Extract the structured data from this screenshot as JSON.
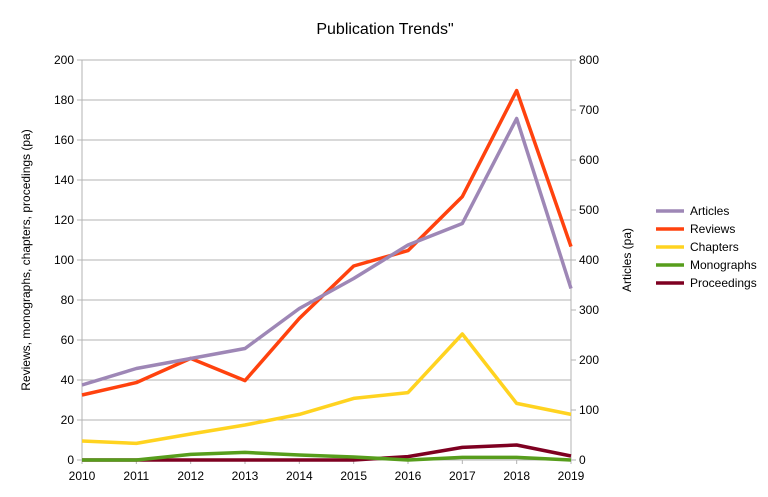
{
  "chart_data": {
    "type": "line",
    "title": "Publication Trends\"",
    "ylabel": "Reviews, monographs, chapters, procedings (pa)",
    "y2label": "Articles (pa)",
    "x": [
      "2010",
      "2011",
      "2012",
      "2013",
      "2014",
      "2015",
      "2016",
      "2017",
      "2018",
      "2019"
    ],
    "ylim": [
      0,
      200
    ],
    "y2lim": [
      0,
      800
    ],
    "yticks": [
      0,
      20,
      40,
      60,
      80,
      100,
      120,
      140,
      160,
      180,
      200
    ],
    "y2ticks": [
      0,
      100,
      200,
      300,
      400,
      500,
      600,
      700,
      800
    ],
    "grid": true,
    "legend": "right",
    "series": [
      {
        "name": "Articles",
        "axis": "right",
        "color": "#9e87b6",
        "values": [
          150,
          183,
          203,
          223,
          303,
          363,
          430,
          473,
          683,
          343
        ]
      },
      {
        "name": "Reviews",
        "axis": "left",
        "color": "#ff420e",
        "values": [
          32.5,
          38.7,
          50.8,
          39.7,
          70.8,
          97,
          104.7,
          131.7,
          184.7,
          106.7
        ]
      },
      {
        "name": "Chapters",
        "axis": "left",
        "color": "#ffd320",
        "values": [
          9.5,
          8.3,
          13,
          17.5,
          22.8,
          30.8,
          33.7,
          63,
          28.3,
          22.8
        ]
      },
      {
        "name": "Monographs",
        "axis": "left",
        "color": "#579d1c",
        "values": [
          0,
          0,
          2.8,
          3.8,
          2.5,
          1.5,
          0,
          1.3,
          1.3,
          0
        ]
      },
      {
        "name": "Proceedings",
        "axis": "left",
        "color": "#7e0021",
        "values": [
          0,
          0,
          0,
          0,
          0,
          0,
          1.7,
          6.3,
          7.5,
          2
        ]
      }
    ]
  }
}
